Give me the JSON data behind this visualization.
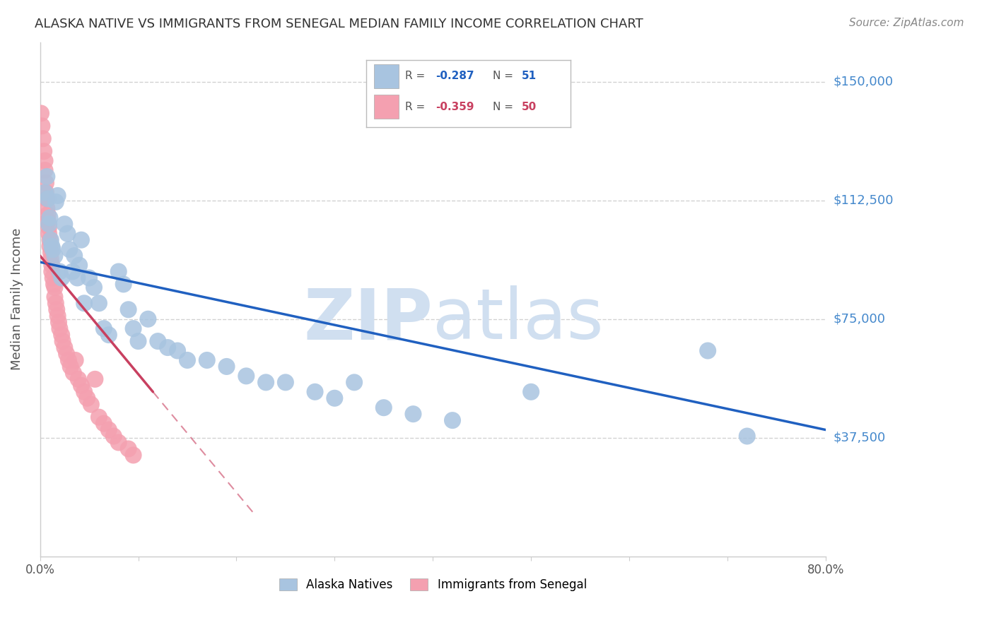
{
  "title": "ALASKA NATIVE VS IMMIGRANTS FROM SENEGAL MEDIAN FAMILY INCOME CORRELATION CHART",
  "source": "Source: ZipAtlas.com",
  "ylabel": "Median Family Income",
  "xlim": [
    0.0,
    0.8
  ],
  "ylim": [
    0,
    162500
  ],
  "yticks": [
    37500,
    75000,
    112500,
    150000
  ],
  "ytick_labels": [
    "$37,500",
    "$75,000",
    "$112,500",
    "$150,000"
  ],
  "alaska_R": -0.287,
  "alaska_N": 51,
  "senegal_R": -0.359,
  "senegal_N": 50,
  "alaska_color": "#a8c4e0",
  "senegal_color": "#f4a0b0",
  "alaska_line_color": "#2060c0",
  "senegal_line_color": "#c84060",
  "background_color": "#ffffff",
  "grid_color": "#cccccc",
  "title_color": "#333333",
  "axis_label_color": "#555555",
  "ytick_color": "#4488cc",
  "watermark_color": "#d0dff0",
  "alaska_x": [
    0.005,
    0.007,
    0.008,
    0.009,
    0.01,
    0.011,
    0.012,
    0.013,
    0.015,
    0.016,
    0.018,
    0.02,
    0.022,
    0.025,
    0.028,
    0.03,
    0.033,
    0.035,
    0.038,
    0.04,
    0.042,
    0.045,
    0.05,
    0.055,
    0.06,
    0.065,
    0.07,
    0.08,
    0.085,
    0.09,
    0.095,
    0.1,
    0.11,
    0.12,
    0.13,
    0.14,
    0.15,
    0.17,
    0.19,
    0.21,
    0.23,
    0.25,
    0.28,
    0.3,
    0.32,
    0.35,
    0.38,
    0.42,
    0.5,
    0.68,
    0.72
  ],
  "alaska_y": [
    115000,
    120000,
    113000,
    105000,
    107000,
    100000,
    98000,
    97000,
    95000,
    112000,
    114000,
    90000,
    88000,
    105000,
    102000,
    97000,
    90000,
    95000,
    88000,
    92000,
    100000,
    80000,
    88000,
    85000,
    80000,
    72000,
    70000,
    90000,
    86000,
    78000,
    72000,
    68000,
    75000,
    68000,
    66000,
    65000,
    62000,
    62000,
    60000,
    57000,
    55000,
    55000,
    52000,
    50000,
    55000,
    47000,
    45000,
    43000,
    52000,
    65000,
    38000
  ],
  "senegal_x": [
    0.001,
    0.002,
    0.003,
    0.004,
    0.005,
    0.005,
    0.006,
    0.006,
    0.007,
    0.007,
    0.008,
    0.008,
    0.009,
    0.009,
    0.01,
    0.01,
    0.011,
    0.011,
    0.012,
    0.012,
    0.013,
    0.014,
    0.015,
    0.015,
    0.016,
    0.017,
    0.018,
    0.019,
    0.02,
    0.022,
    0.023,
    0.025,
    0.027,
    0.029,
    0.031,
    0.034,
    0.036,
    0.039,
    0.042,
    0.045,
    0.048,
    0.052,
    0.056,
    0.06,
    0.065,
    0.07,
    0.075,
    0.08,
    0.09,
    0.095
  ],
  "senegal_y": [
    140000,
    136000,
    132000,
    128000,
    125000,
    122000,
    118000,
    115000,
    113000,
    110000,
    108000,
    106000,
    104000,
    102000,
    100000,
    98000,
    96000,
    94000,
    92000,
    90000,
    88000,
    86000,
    85000,
    82000,
    80000,
    78000,
    76000,
    74000,
    72000,
    70000,
    68000,
    66000,
    64000,
    62000,
    60000,
    58000,
    62000,
    56000,
    54000,
    52000,
    50000,
    48000,
    56000,
    44000,
    42000,
    40000,
    38000,
    36000,
    34000,
    32000
  ],
  "alaska_line_x": [
    0.0,
    0.8
  ],
  "alaska_line_y": [
    93000,
    40000
  ],
  "senegal_line_x": [
    0.0,
    0.115
  ],
  "senegal_line_y": [
    95000,
    52000
  ]
}
